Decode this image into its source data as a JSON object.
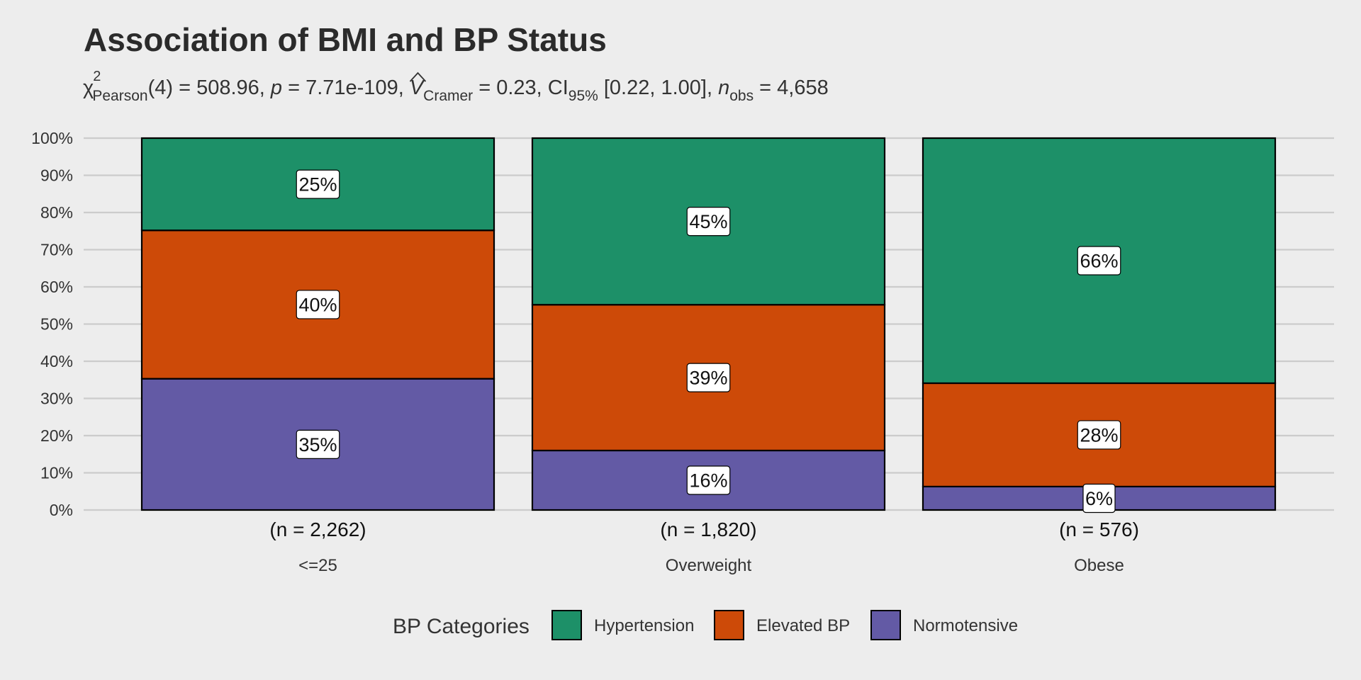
{
  "chart_data": {
    "type": "bar",
    "stacked": true,
    "percent": true,
    "title": "Association of BMI and BP Status",
    "subtitle": {
      "chi": "χ",
      "chi_sup": "2",
      "chi_sub": "Pearson",
      "df": "(4) = 508.96, ",
      "p_sym": "p",
      "p_val": " = 7.71e-109, ",
      "v_sym": "V",
      "v_sub": "Cramer",
      "v_val": " = 0.23, CI",
      "ci_sub": "95%",
      "ci_val": " [0.22, 1.00], ",
      "n_sym": "n",
      "n_sub": "obs",
      "n_val": " = 4,658"
    },
    "categories": [
      "<=25",
      "Overweight",
      "Obese"
    ],
    "counts": [
      "(n = 2,262)",
      "(n = 1,820)",
      "(n = 576)"
    ],
    "series": [
      {
        "name": "Normotensive",
        "color": "#635aa5",
        "values": [
          35.3,
          16.0,
          6.3
        ],
        "labels": [
          "35%",
          "16%",
          "6%"
        ]
      },
      {
        "name": "Elevated BP",
        "color": "#cd4a08",
        "values": [
          39.9,
          39.2,
          27.8
        ],
        "labels": [
          "40%",
          "39%",
          "28%"
        ]
      },
      {
        "name": "Hypertension",
        "color": "#1d9068",
        "values": [
          24.8,
          44.8,
          65.9
        ],
        "labels": [
          "25%",
          "45%",
          "66%"
        ]
      }
    ],
    "ylim": [
      0,
      100
    ],
    "yticks": [
      "0%",
      "10%",
      "20%",
      "30%",
      "40%",
      "50%",
      "60%",
      "70%",
      "80%",
      "90%",
      "100%"
    ],
    "grid": true,
    "legend": {
      "title": "BP Categories",
      "position": "bottom",
      "order": [
        "Hypertension",
        "Elevated BP",
        "Normotensive"
      ]
    }
  }
}
